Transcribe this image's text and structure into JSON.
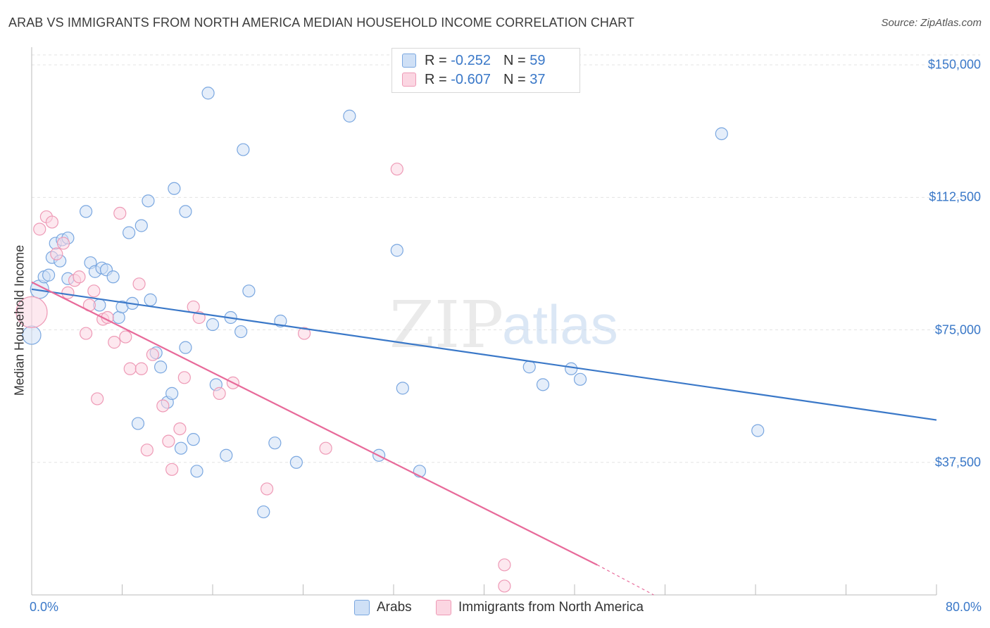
{
  "title": "ARAB VS IMMIGRANTS FROM NORTH AMERICA MEDIAN HOUSEHOLD INCOME CORRELATION CHART",
  "source": "Source: ZipAtlas.com",
  "watermark": {
    "zip": "ZIP",
    "atlas": "atlas"
  },
  "legend_top": {
    "rows": [
      {
        "r_label": "R =",
        "r_value": "-0.252",
        "n_label": "N =",
        "n_value": "59",
        "color": "#a9c8ef"
      },
      {
        "r_label": "R =",
        "r_value": "-0.607",
        "n_label": "N =",
        "n_value": "37",
        "color": "#f5b8cb"
      }
    ]
  },
  "legend_bottom": [
    {
      "label": "Arabs",
      "color": "#a9c8ef"
    },
    {
      "label": "Immigrants from North America",
      "color": "#f5b8cb"
    }
  ],
  "colors": {
    "blue": "#3a78c8",
    "pink": "#e86a9a",
    "blue_fill": "#a9c8ef",
    "pink_fill": "#f5b8cb",
    "grid": "#e3e3e3"
  },
  "chart_data": {
    "type": "scatter",
    "title": "ARAB VS IMMIGRANTS FROM NORTH AMERICA MEDIAN HOUSEHOLD INCOME CORRELATION CHART",
    "xlabel": "",
    "ylabel": "Median Household Income",
    "xlim": [
      0,
      80
    ],
    "ylim": [
      0,
      155000
    ],
    "x_tick_labels": [
      "0.0%",
      "80.0%"
    ],
    "y_ticks": [
      37500,
      75000,
      112500,
      150000
    ],
    "y_tick_labels": [
      "$37,500",
      "$75,000",
      "$112,500",
      "$150,000"
    ],
    "grid": true,
    "series": [
      {
        "name": "Arabs",
        "points": [
          [
            0.0,
            73500,
            2
          ],
          [
            0.7,
            86500,
            2
          ],
          [
            1.1,
            90000,
            1
          ],
          [
            1.5,
            90500,
            1
          ],
          [
            1.8,
            95500,
            1
          ],
          [
            2.1,
            99500,
            1
          ],
          [
            2.5,
            94500,
            1
          ],
          [
            2.7,
            100500,
            1
          ],
          [
            3.2,
            89500,
            1
          ],
          [
            3.2,
            101000,
            1
          ],
          [
            4.8,
            108500,
            1
          ],
          [
            5.2,
            94000,
            1
          ],
          [
            5.6,
            91500,
            1
          ],
          [
            6.0,
            82000,
            1
          ],
          [
            6.2,
            92500,
            1
          ],
          [
            6.6,
            92000,
            1
          ],
          [
            7.2,
            90000,
            1
          ],
          [
            7.7,
            78500,
            1
          ],
          [
            8.0,
            81500,
            1
          ],
          [
            8.6,
            102500,
            1
          ],
          [
            8.9,
            82500,
            1
          ],
          [
            9.4,
            48500,
            1
          ],
          [
            9.7,
            104500,
            1
          ],
          [
            10.3,
            111500,
            1
          ],
          [
            10.5,
            83500,
            1
          ],
          [
            11.0,
            68500,
            1
          ],
          [
            11.4,
            64500,
            1
          ],
          [
            12.0,
            54500,
            1
          ],
          [
            12.4,
            57000,
            1
          ],
          [
            12.6,
            115000,
            1
          ],
          [
            13.2,
            41500,
            1
          ],
          [
            13.6,
            70000,
            1
          ],
          [
            13.6,
            108500,
            1
          ],
          [
            14.3,
            44000,
            1
          ],
          [
            14.6,
            35000,
            1
          ],
          [
            15.6,
            142000,
            1
          ],
          [
            16.0,
            76500,
            1
          ],
          [
            16.3,
            59500,
            1
          ],
          [
            17.2,
            39500,
            1
          ],
          [
            17.6,
            78500,
            1
          ],
          [
            18.5,
            74500,
            1
          ],
          [
            18.7,
            126000,
            1
          ],
          [
            19.2,
            86000,
            1
          ],
          [
            20.5,
            23500,
            1
          ],
          [
            21.5,
            43000,
            1
          ],
          [
            22.0,
            77500,
            1
          ],
          [
            23.4,
            37500,
            1
          ],
          [
            28.1,
            135500,
            1
          ],
          [
            30.7,
            39500,
            1
          ],
          [
            32.3,
            97500,
            1
          ],
          [
            32.8,
            58500,
            1
          ],
          [
            34.3,
            35000,
            1
          ],
          [
            44.0,
            64500,
            1
          ],
          [
            45.2,
            59500,
            1
          ],
          [
            47.7,
            64000,
            1
          ],
          [
            48.5,
            61000,
            1
          ],
          [
            61.0,
            130500,
            1
          ],
          [
            64.2,
            46500,
            1
          ]
        ]
      },
      {
        "name": "Immigrants from North America",
        "points": [
          [
            0.0,
            80000,
            3
          ],
          [
            0.7,
            103500,
            1
          ],
          [
            1.3,
            107000,
            1
          ],
          [
            1.8,
            105500,
            1
          ],
          [
            2.2,
            96500,
            1
          ],
          [
            2.8,
            99500,
            1
          ],
          [
            3.2,
            85500,
            1
          ],
          [
            3.8,
            89000,
            1
          ],
          [
            4.2,
            90000,
            1
          ],
          [
            4.8,
            74000,
            1
          ],
          [
            5.1,
            82000,
            1
          ],
          [
            5.5,
            86000,
            1
          ],
          [
            5.8,
            55500,
            1
          ],
          [
            6.3,
            78000,
            1
          ],
          [
            6.7,
            78500,
            1
          ],
          [
            7.3,
            71500,
            1
          ],
          [
            7.8,
            108000,
            1
          ],
          [
            8.3,
            73000,
            1
          ],
          [
            8.7,
            64000,
            1
          ],
          [
            9.5,
            88000,
            1
          ],
          [
            9.7,
            64000,
            1
          ],
          [
            10.2,
            41000,
            1
          ],
          [
            10.7,
            68000,
            1
          ],
          [
            11.6,
            53500,
            1
          ],
          [
            12.1,
            43500,
            1
          ],
          [
            12.4,
            35500,
            1
          ],
          [
            13.1,
            47000,
            1
          ],
          [
            13.5,
            61500,
            1
          ],
          [
            14.3,
            81500,
            1
          ],
          [
            14.8,
            78500,
            1
          ],
          [
            16.6,
            57000,
            1
          ],
          [
            17.8,
            60000,
            1
          ],
          [
            20.8,
            30000,
            1
          ],
          [
            24.1,
            74000,
            1
          ],
          [
            26.0,
            41500,
            1
          ],
          [
            32.3,
            120500,
            1
          ],
          [
            41.8,
            8500,
            1
          ],
          [
            41.8,
            2500,
            1
          ]
        ]
      }
    ],
    "trend_lines": [
      {
        "series": "Arabs",
        "x": [
          0.0,
          80.0
        ],
        "y": [
          86500,
          49500
        ]
      },
      {
        "series": "Immigrants from North America",
        "x": [
          0.0,
          50.0
        ],
        "y": [
          88500,
          8500
        ],
        "dashed_to": [
          55.0,
          0
        ]
      }
    ]
  }
}
